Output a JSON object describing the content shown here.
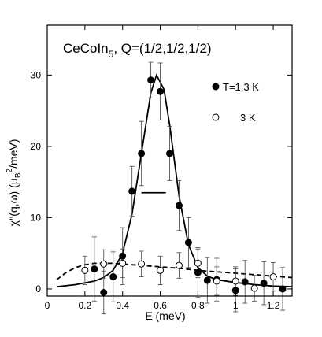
{
  "chart_data": {
    "type": "scatter",
    "title": {
      "main": "CeCoIn",
      "sub": "5",
      "rest": ", Q=(1/2,1/2,1/2)"
    },
    "xlabel": "E (meV)",
    "ylabel": {
      "a": "χ''(q,ω) (μ",
      "b": "B",
      "c": "2",
      "d": "/meV)"
    },
    "xlim": [
      0,
      1.3
    ],
    "ylim": [
      -1,
      37
    ],
    "xticks": [
      0,
      0.2,
      0.4,
      0.6,
      0.8,
      1,
      1.2
    ],
    "xtick_labels": [
      "0",
      "0.2",
      "0.4",
      "0.6",
      "0.8",
      "1",
      "1.2"
    ],
    "yticks": [
      0,
      10,
      20,
      30
    ],
    "ytick_labels": [
      "0",
      "10",
      "20",
      "30"
    ],
    "grid": false,
    "legend": [
      {
        "label": "T=1.3 K",
        "marker": "filled-circle"
      },
      {
        "label": "3 K",
        "marker": "open-circle"
      }
    ],
    "series": [
      {
        "marker": "filled-circle",
        "points": [
          {
            "x": 0.25,
            "y": 2.8,
            "err": 4.5
          },
          {
            "x": 0.3,
            "y": -0.5,
            "err": 3.0
          },
          {
            "x": 0.35,
            "y": 1.7,
            "err": 3.5
          },
          {
            "x": 0.4,
            "y": 4.6,
            "err": 4.0
          },
          {
            "x": 0.45,
            "y": 13.7,
            "err": 3.5
          },
          {
            "x": 0.5,
            "y": 19.0,
            "err": 4.5
          },
          {
            "x": 0.55,
            "y": 29.3,
            "err": 2.5
          },
          {
            "x": 0.6,
            "y": 27.7,
            "err": 4.0
          },
          {
            "x": 0.65,
            "y": 19.0,
            "err": 3.8
          },
          {
            "x": 0.7,
            "y": 11.7,
            "err": 3.5
          },
          {
            "x": 0.75,
            "y": 6.5,
            "err": 3.5
          },
          {
            "x": 0.8,
            "y": 2.3,
            "err": 3.5
          },
          {
            "x": 0.85,
            "y": 1.2,
            "err": 3.2
          },
          {
            "x": 0.9,
            "y": 1.3,
            "err": 3.0
          },
          {
            "x": 1.0,
            "y": -0.2,
            "err": 3.0
          },
          {
            "x": 1.05,
            "y": 1.0,
            "err": 3.0
          },
          {
            "x": 1.15,
            "y": 0.8,
            "err": 3.0
          },
          {
            "x": 1.25,
            "y": 0.0,
            "err": 3.0
          }
        ]
      },
      {
        "marker": "open-circle",
        "points": [
          {
            "x": 0.2,
            "y": 2.6,
            "err": 2.0
          },
          {
            "x": 0.3,
            "y": 3.5,
            "err": 2.0
          },
          {
            "x": 0.4,
            "y": 3.6,
            "err": 2.0
          },
          {
            "x": 0.5,
            "y": 3.5,
            "err": 1.8
          },
          {
            "x": 0.6,
            "y": 2.6,
            "err": 2.0
          },
          {
            "x": 0.7,
            "y": 3.3,
            "err": 1.8
          },
          {
            "x": 0.8,
            "y": 3.6,
            "err": 2.0
          },
          {
            "x": 0.9,
            "y": 1.1,
            "err": 2.0
          },
          {
            "x": 1.0,
            "y": 1.1,
            "err": 2.0
          },
          {
            "x": 1.1,
            "y": 0.1,
            "err": 1.8
          },
          {
            "x": 1.2,
            "y": 1.7,
            "err": 2.0
          }
        ]
      }
    ],
    "fits": [
      {
        "style": "solid",
        "x": [
          0.05,
          0.15,
          0.25,
          0.3,
          0.35,
          0.4,
          0.45,
          0.5,
          0.55,
          0.58,
          0.62,
          0.65,
          0.7,
          0.75,
          0.8,
          0.85,
          0.9,
          1.0,
          1.1,
          1.2,
          1.3
        ],
        "y": [
          0.3,
          0.6,
          1.1,
          1.6,
          2.6,
          5.0,
          10.5,
          19.0,
          27.5,
          30.0,
          28.0,
          23.0,
          13.0,
          6.2,
          3.0,
          1.8,
          1.3,
          0.9,
          0.6,
          0.4,
          0.3
        ]
      },
      {
        "style": "dashed",
        "x": [
          0.05,
          0.1,
          0.15,
          0.2,
          0.25,
          0.3,
          0.35,
          0.4,
          0.5,
          0.6,
          0.7,
          0.8,
          0.9,
          1.0,
          1.1,
          1.2,
          1.3
        ],
        "y": [
          1.3,
          2.3,
          3.0,
          3.4,
          3.6,
          3.6,
          3.6,
          3.5,
          3.3,
          3.1,
          2.9,
          2.6,
          2.4,
          2.2,
          2.0,
          1.8,
          1.6
        ]
      }
    ],
    "annotations": [
      {
        "type": "resolution-bar",
        "x1": 0.5,
        "x2": 0.63,
        "y": 13.5
      }
    ]
  }
}
